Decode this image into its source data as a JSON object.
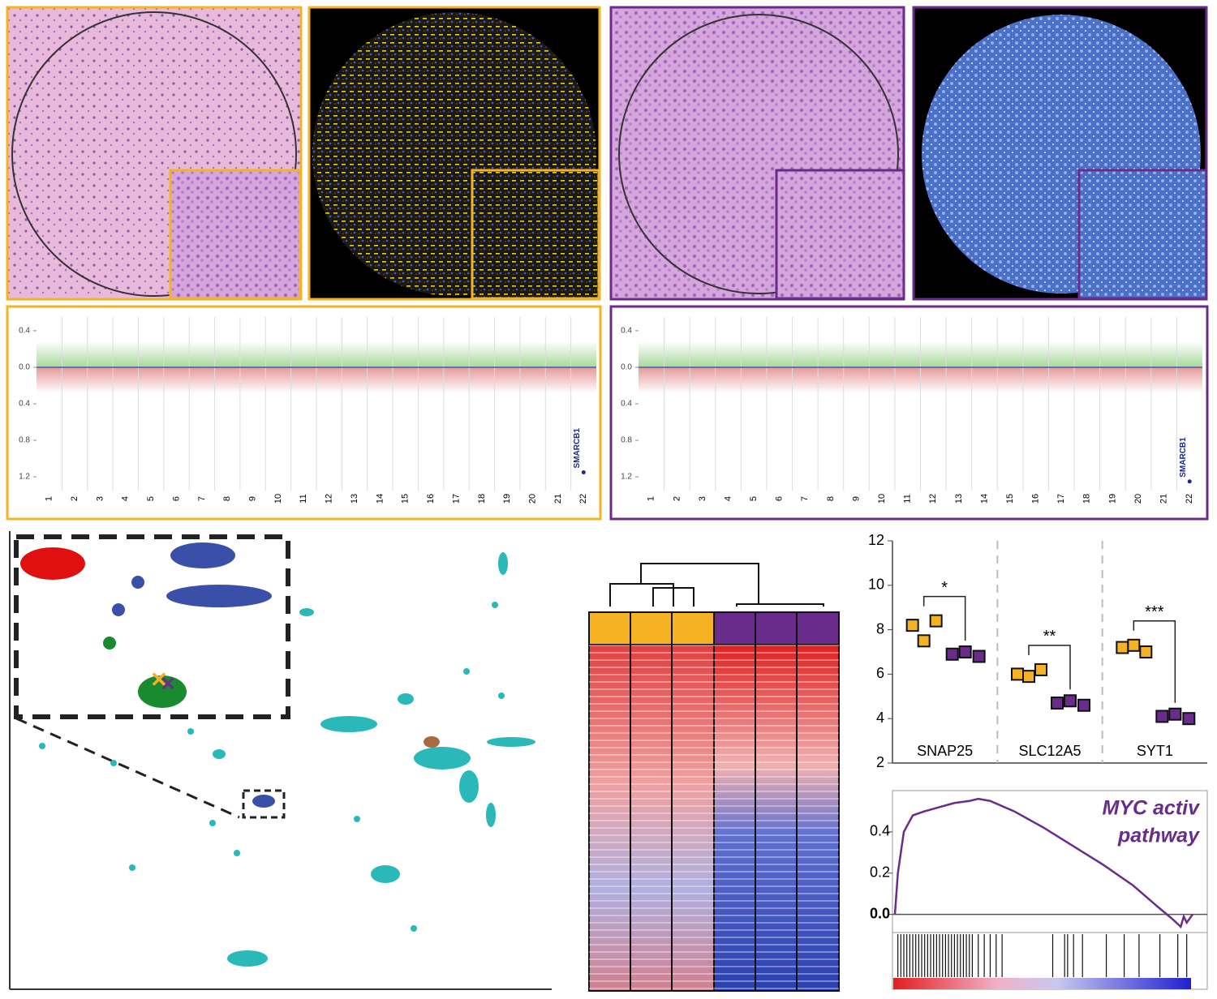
{
  "chart_data": [
    {
      "type": "scatter",
      "border": "#f5b324",
      "ylim": [
        -1.35,
        0.55
      ],
      "yticks": [
        0.4,
        {
          "value": 0,
          "label": "0.0"
        },
        {
          "value": -0.4,
          "label": "0.4"
        },
        {
          "value": -0.8,
          "label": "0.8"
        },
        {
          "value": -1.2,
          "label": "1.2"
        }
      ],
      "categories": [
        "1",
        "2",
        "3",
        "4",
        "5",
        "6",
        "7",
        "8",
        "9",
        "10",
        "11",
        "12",
        "13",
        "14",
        "15",
        "16",
        "17",
        "18",
        "19",
        "20",
        "21",
        "22"
      ],
      "annotation": {
        "label": "SMARCB1",
        "value": -1.15
      }
    },
    {
      "type": "scatter",
      "border": "#6a2c8a",
      "ylim": [
        -1.35,
        0.55
      ],
      "yticks": [
        0.4,
        {
          "value": 0,
          "label": "0.0"
        },
        {
          "value": -0.4,
          "label": "0.4"
        },
        {
          "value": -0.8,
          "label": "0.8"
        },
        {
          "value": -1.2,
          "label": "1.2"
        }
      ],
      "categories": [
        "1",
        "2",
        "3",
        "4",
        "5",
        "6",
        "7",
        "8",
        "9",
        "10",
        "11",
        "12",
        "13",
        "14",
        "15",
        "16",
        "17",
        "18",
        "19",
        "20",
        "21",
        "22"
      ],
      "annotation": {
        "label": "SMARCB1",
        "value": -1.25
      }
    },
    {
      "type": "strip",
      "ylim": [
        2,
        12
      ],
      "yticks": [
        2,
        4,
        6,
        8,
        10,
        12
      ],
      "categories": [
        "SNAP25",
        "SLC12A5",
        "SYT1"
      ],
      "significance": [
        "*",
        "**",
        "***"
      ],
      "series": [
        {
          "color": "#f5b324",
          "values": [
            [
              8.2,
              7.5,
              8.4
            ],
            [
              6.0,
              5.9,
              6.2
            ],
            [
              7.2,
              7.3,
              7.0
            ]
          ]
        },
        {
          "color": "#6a2c8a",
          "values": [
            [
              6.9,
              7.0,
              6.8
            ],
            [
              4.7,
              4.8,
              4.6
            ],
            [
              4.1,
              4.2,
              4.0
            ]
          ]
        }
      ]
    },
    {
      "type": "line",
      "title": [
        "MYC activ",
        "pathway"
      ],
      "color": "#6a2c8a",
      "xlim": [
        0,
        100
      ],
      "ylim": [
        -0.08,
        0.6
      ],
      "yticks": [
        {
          "value": 0,
          "label": "0.0"
        },
        0.2,
        0.4
      ],
      "x": [
        0,
        1,
        3,
        6,
        10,
        15,
        20,
        25,
        28,
        32,
        40,
        50,
        60,
        70,
        80,
        88,
        93,
        96,
        97,
        98,
        100
      ],
      "values": [
        0,
        0.2,
        0.4,
        0.48,
        0.5,
        0.52,
        0.54,
        0.55,
        0.56,
        0.55,
        0.5,
        0.42,
        0.33,
        0.24,
        0.14,
        0.04,
        -0.02,
        -0.06,
        -0.01,
        -0.04,
        0
      ],
      "hits": [
        1,
        2,
        3,
        4,
        5,
        6,
        7,
        8,
        9,
        10,
        11,
        12,
        13,
        14,
        15,
        16,
        17,
        18,
        19,
        20,
        21,
        22,
        23,
        24,
        25,
        26,
        28,
        30,
        32,
        34,
        36,
        53,
        57,
        58,
        60,
        63,
        71,
        77,
        82,
        89,
        95,
        98
      ]
    }
  ]
}
